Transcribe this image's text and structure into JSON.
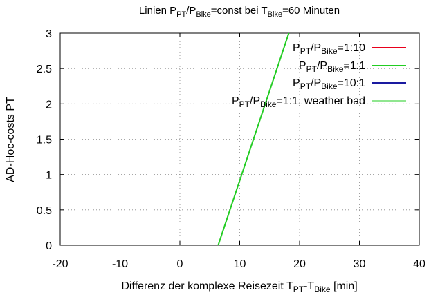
{
  "chart_data": {
    "type": "line",
    "title": {
      "prefix": "Linien  ",
      "p1": "P",
      "p1_sub": "PT",
      "slash": "/",
      "p2": "P",
      "p2_sub": "Bike",
      "mid": "=const bei ",
      "t": "T",
      "t_sub": "Bike",
      "suffix": "=60 Minuten"
    },
    "ylabel": "AD-Hoc-costs PT",
    "xlabel": {
      "prefix": "Differenz der komplexe Reisezeit ",
      "t1": "T",
      "t1_sub": "PT",
      "dash": "-",
      "t2": "T",
      "t2_sub": "Bike",
      "suffix": " [min]"
    },
    "xlim": [
      -20,
      40
    ],
    "ylim": [
      0,
      3
    ],
    "x_ticks": [
      -20,
      -10,
      0,
      10,
      20,
      30,
      40
    ],
    "x_tick_labels": [
      "-20",
      "-10",
      "0",
      "10",
      "20",
      "30",
      "40"
    ],
    "y_ticks": [
      0,
      0.5,
      1,
      1.5,
      2,
      2.5,
      3
    ],
    "y_tick_labels": [
      "0",
      "0.5",
      "1",
      "1.5",
      "2",
      "2.5",
      "3"
    ],
    "grid": true,
    "legend_position": "top-right",
    "series": [
      {
        "legend": {
          "p1": "P",
          "p1_sub": "PT",
          "slash": "/",
          "p2": "P",
          "p2_sub": "Bike",
          "rest": "=1:10"
        },
        "color": "#e8001c",
        "width": 2,
        "points": []
      },
      {
        "legend": {
          "p1": "P",
          "p1_sub": "PT",
          "slash": "/",
          "p2": "P",
          "p2_sub": "Bike",
          "rest": "=1:1"
        },
        "color": "#22cc22",
        "width": 2,
        "points": [
          [
            6.4,
            0
          ],
          [
            18.2,
            3
          ]
        ]
      },
      {
        "legend": {
          "p1": "P",
          "p1_sub": "PT",
          "slash": "/",
          "p2": "P",
          "p2_sub": "Bike",
          "rest": "=10:1"
        },
        "color": "#1a1aa0",
        "width": 2,
        "points": []
      },
      {
        "legend": {
          "p1": "P",
          "p1_sub": "PT",
          "slash": "/",
          "p2": "P",
          "p2_sub": "Bike",
          "rest": "=1:1, weather bad"
        },
        "color": "#22cc22",
        "width": 1,
        "points": [
          [
            6.4,
            0
          ],
          [
            18.2,
            3
          ]
        ]
      }
    ]
  }
}
